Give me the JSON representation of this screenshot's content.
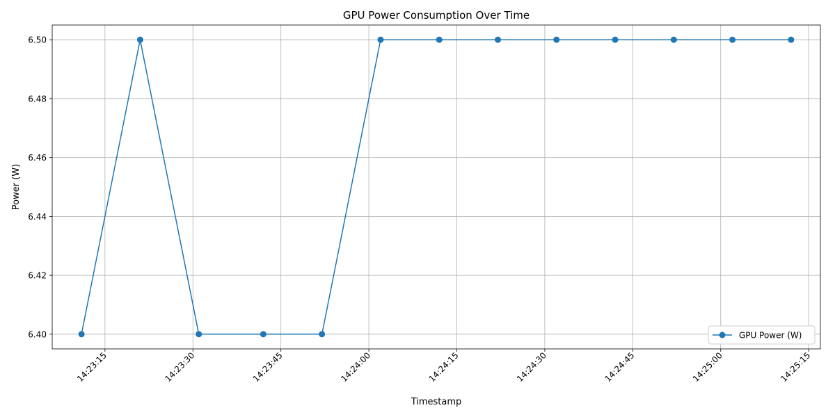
{
  "chart_data": {
    "type": "line",
    "title": "GPU Power Consumption Over Time",
    "xlabel": "Timestamp",
    "ylabel": "Power (W)",
    "x": [
      "14:23:11",
      "14:23:21",
      "14:23:31",
      "14:23:42",
      "14:23:52",
      "14:24:02",
      "14:24:12",
      "14:24:22",
      "14:24:32",
      "14:24:42",
      "14:24:52",
      "14:25:02",
      "14:25:12"
    ],
    "series": [
      {
        "name": "GPU Power (W)",
        "color": "#1f77b4",
        "marker": "circle",
        "values": [
          6.4,
          6.5,
          6.4,
          6.4,
          6.4,
          6.5,
          6.5,
          6.5,
          6.5,
          6.5,
          6.5,
          6.5,
          6.5
        ]
      }
    ],
    "xlim": [
      "14:23:06",
      "14:25:17"
    ],
    "ylim": [
      6.395,
      6.505
    ],
    "x_ticks": [
      "14:23:15",
      "14:23:30",
      "14:23:45",
      "14:24:00",
      "14:24:15",
      "14:24:30",
      "14:24:45",
      "14:25:00",
      "14:25:15"
    ],
    "y_ticks": [
      "6.40",
      "6.42",
      "6.44",
      "6.46",
      "6.48",
      "6.50"
    ],
    "grid": true,
    "legend": "lower-right"
  }
}
